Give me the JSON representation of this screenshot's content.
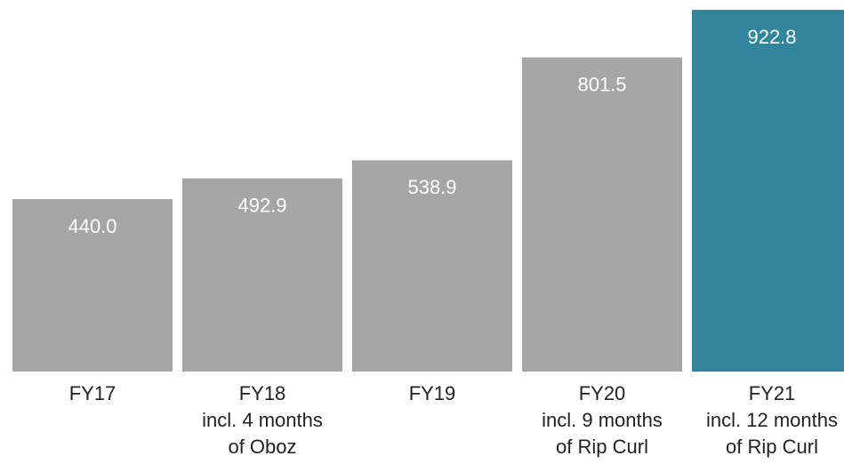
{
  "chart_data": {
    "type": "bar",
    "categories": [
      "FY17",
      "FY18\nincl. 4 months\nof Oboz",
      "FY19",
      "FY20\nincl. 9 months\nof Rip Curl",
      "FY21\nincl. 12 months\nof Rip Curl"
    ],
    "values": [
      440.0,
      492.9,
      538.9,
      801.5,
      922.8
    ],
    "value_labels": [
      "440.0",
      "492.9",
      "538.9",
      "801.5",
      "922.8"
    ],
    "colors": [
      "#a6a6a6",
      "#a6a6a6",
      "#a6a6a6",
      "#a6a6a6",
      "#31869b"
    ],
    "ylim": [
      0,
      948
    ]
  }
}
